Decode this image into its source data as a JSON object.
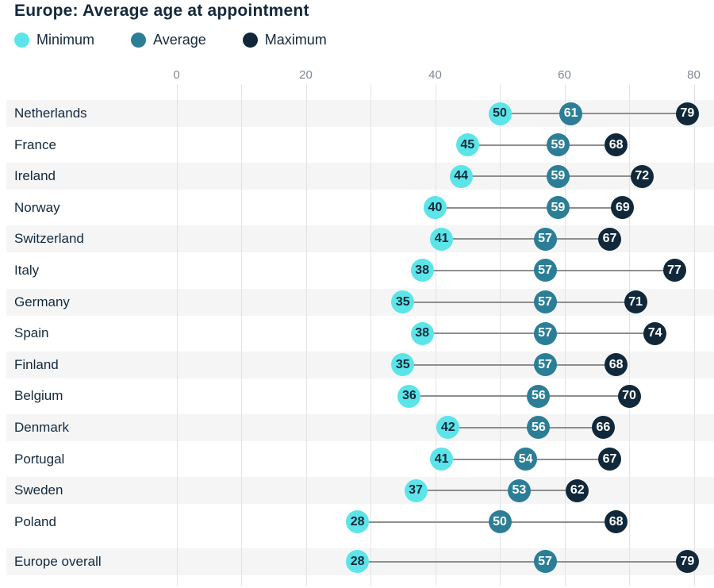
{
  "title": "Europe: Average age at appointment",
  "legend": [
    {
      "label": "Minimum",
      "color": "#5be5e8"
    },
    {
      "label": "Average",
      "color": "#2b7e96"
    },
    {
      "label": "Maximum",
      "color": "#10283a"
    }
  ],
  "axis": {
    "tick_labels": [
      0,
      20,
      40,
      60,
      80
    ],
    "grid_step": 10,
    "min": 0,
    "max": 80
  },
  "chart_data": {
    "type": "dumbbell",
    "title": "Europe: Average age at appointment",
    "categories": [
      "Netherlands",
      "France",
      "Ireland",
      "Norway",
      "Switzerland",
      "Italy",
      "Germany",
      "Spain",
      "Finland",
      "Belgium",
      "Denmark",
      "Portugal",
      "Sweden",
      "Poland",
      "Europe overall"
    ],
    "series": [
      {
        "name": "Minimum",
        "color": "#5be5e8",
        "values": [
          50,
          45,
          44,
          40,
          41,
          38,
          35,
          38,
          35,
          36,
          42,
          41,
          37,
          28,
          28
        ]
      },
      {
        "name": "Average",
        "color": "#2b7e96",
        "values": [
          61,
          59,
          59,
          59,
          57,
          57,
          57,
          57,
          57,
          56,
          56,
          54,
          53,
          50,
          57
        ]
      },
      {
        "name": "Maximum",
        "color": "#10283a",
        "values": [
          79,
          68,
          72,
          69,
          67,
          77,
          71,
          74,
          68,
          70,
          66,
          67,
          62,
          68,
          79
        ]
      }
    ],
    "xlim": [
      0,
      80
    ],
    "xlabel": "",
    "ylabel": "",
    "legend_position": "top",
    "grid": true,
    "row_shading": "alternate-starting-first",
    "separated_last_row": true
  },
  "colors": {
    "title_text": "#14293c",
    "country_text": "#14293c",
    "axis_text": "#7f8792",
    "row_band": "#f5f5f6",
    "gridline": "#e2e3e5",
    "connector": "#8e8e8e",
    "min_value_text": "#14293c",
    "avg_value_text": "#ffffff",
    "max_value_text": "#ffffff"
  }
}
